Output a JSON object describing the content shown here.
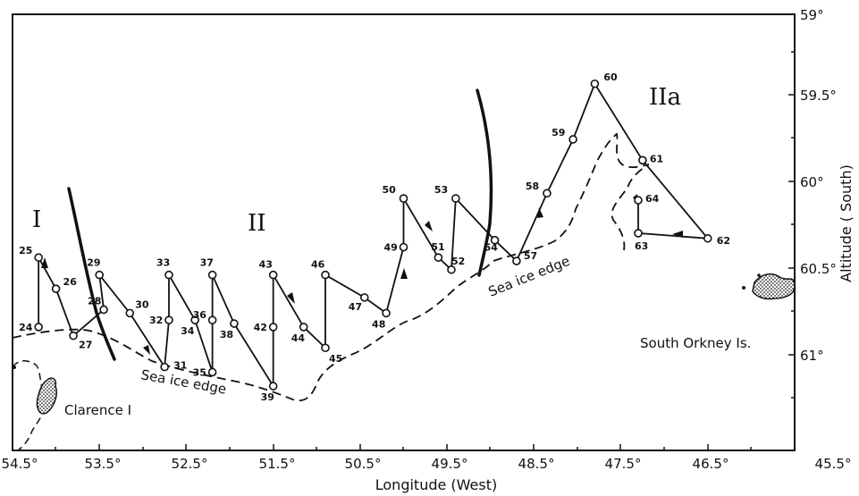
{
  "map": {
    "x_axis_label": "Longitude (West)",
    "y_axis_label": "Altitude ( South)",
    "x_ticks": [
      "54.5°",
      "53.5°",
      "52.5°",
      "51.5°",
      "50.5°",
      "49.5°",
      "48.5°",
      "47.5°",
      "46.5°",
      "45.5°"
    ],
    "y_ticks": [
      "59°",
      "59.5°",
      "60°",
      "60.5°",
      "61°"
    ],
    "regions": [
      "I",
      "II",
      "IIa"
    ],
    "places": {
      "clarence": "Clarence I",
      "south_orkney": "South Orkney Is.",
      "sea_ice_1": "Sea ice edge",
      "sea_ice_2": "Sea ice edge"
    },
    "stations": [
      {
        "id": "24",
        "lon": 54.2,
        "lat": 60.8
      },
      {
        "id": "25",
        "lon": 54.2,
        "lat": 60.4
      },
      {
        "id": "26",
        "lon": 54.0,
        "lat": 60.58
      },
      {
        "id": "27",
        "lon": 53.8,
        "lat": 60.85
      },
      {
        "id": "28",
        "lon": 53.45,
        "lat": 60.7
      },
      {
        "id": "29",
        "lon": 53.5,
        "lat": 60.5
      },
      {
        "id": "30",
        "lon": 53.15,
        "lat": 60.72
      },
      {
        "id": "31",
        "lon": 52.75,
        "lat": 61.03
      },
      {
        "id": "32",
        "lon": 52.7,
        "lat": 60.76
      },
      {
        "id": "33",
        "lon": 52.7,
        "lat": 60.5
      },
      {
        "id": "34",
        "lon": 52.4,
        "lat": 60.76
      },
      {
        "id": "35",
        "lon": 52.2,
        "lat": 61.06
      },
      {
        "id": "36",
        "lon": 52.2,
        "lat": 60.76
      },
      {
        "id": "37",
        "lon": 52.2,
        "lat": 60.5
      },
      {
        "id": "38",
        "lon": 51.95,
        "lat": 60.78
      },
      {
        "id": "39",
        "lon": 51.5,
        "lat": 61.14
      },
      {
        "id": "42",
        "lon": 51.5,
        "lat": 60.8
      },
      {
        "id": "43",
        "lon": 51.5,
        "lat": 60.5
      },
      {
        "id": "44",
        "lon": 51.15,
        "lat": 60.8
      },
      {
        "id": "45",
        "lon": 50.9,
        "lat": 60.92
      },
      {
        "id": "46",
        "lon": 50.9,
        "lat": 60.5
      },
      {
        "id": "47",
        "lon": 50.45,
        "lat": 60.63
      },
      {
        "id": "48",
        "lon": 50.2,
        "lat": 60.72
      },
      {
        "id": "49",
        "lon": 50.0,
        "lat": 60.34
      },
      {
        "id": "50",
        "lon": 50.0,
        "lat": 60.06
      },
      {
        "id": "51",
        "lon": 49.6,
        "lat": 60.4
      },
      {
        "id": "52",
        "lon": 49.45,
        "lat": 60.47
      },
      {
        "id": "53",
        "lon": 49.4,
        "lat": 60.06
      },
      {
        "id": "54",
        "lon": 48.95,
        "lat": 60.3
      },
      {
        "id": "57",
        "lon": 48.7,
        "lat": 60.42
      },
      {
        "id": "58",
        "lon": 48.35,
        "lat": 60.03
      },
      {
        "id": "59",
        "lon": 48.05,
        "lat": 59.72
      },
      {
        "id": "60",
        "lon": 47.8,
        "lat": 59.4
      },
      {
        "id": "61",
        "lon": 47.25,
        "lat": 59.84
      },
      {
        "id": "62",
        "lon": 46.5,
        "lat": 60.29
      },
      {
        "id": "63",
        "lon": 47.3,
        "lat": 60.26
      },
      {
        "id": "64",
        "lon": 47.3,
        "lat": 60.07
      }
    ]
  }
}
